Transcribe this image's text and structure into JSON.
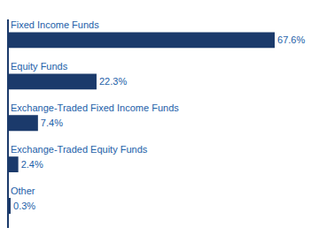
{
  "chart_data": {
    "type": "bar",
    "orientation": "horizontal",
    "categories": [
      "Fixed Income Funds",
      "Equity Funds",
      "Exchange-Traded Fixed Income Funds",
      "Exchange-Traded Equity Funds",
      "Other"
    ],
    "values": [
      67.6,
      22.3,
      7.4,
      2.4,
      0.3
    ],
    "value_labels": [
      "67.6%",
      "22.3%",
      "7.4%",
      "2.4%",
      "0.3%"
    ],
    "data_labels": true,
    "color": "#1b3a6b",
    "xlim": [
      0,
      67.6
    ],
    "tick_labels": false,
    "grid": false
  }
}
